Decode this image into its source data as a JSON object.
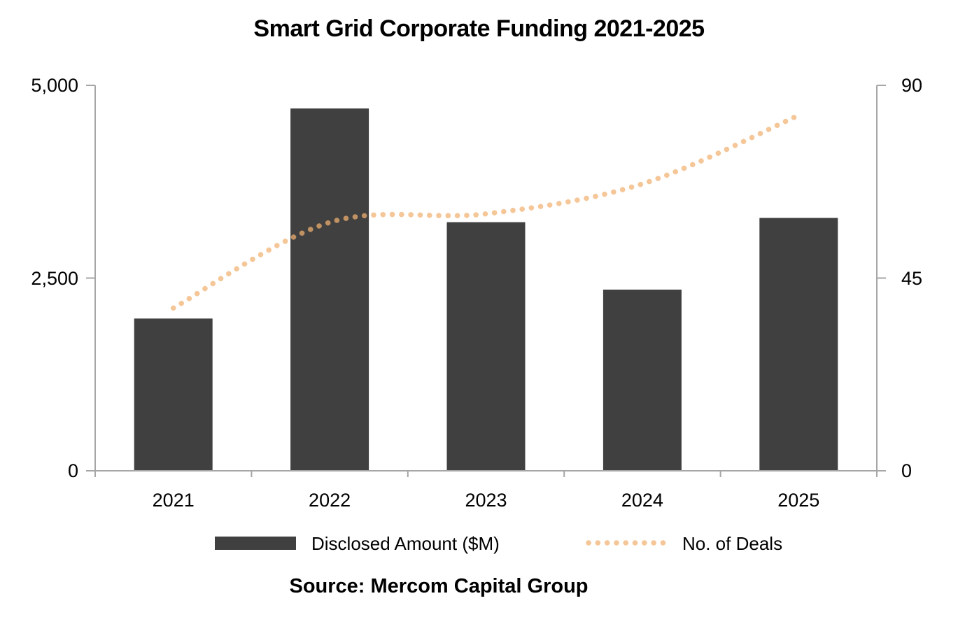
{
  "title": "Smart Grid Corporate Funding 2021-2025",
  "source": "Source: Mercom Capital Group",
  "legend": {
    "items": [
      {
        "label": "Disclosed Amount ($M)",
        "swatch": "bar"
      },
      {
        "label": "No. of Deals",
        "swatch": "dotted-line"
      }
    ]
  },
  "colors": {
    "bar": "#404040",
    "line": "#F1B06F",
    "line_opacity": 0.72,
    "axis": "#A6A6A6",
    "text": "#000000",
    "background": "#FFFFFF"
  },
  "chart_data": {
    "type": "bar",
    "combo": "bar+line",
    "title": "Smart Grid Corporate Funding 2021-2025",
    "categories": [
      "2021",
      "2022",
      "2023",
      "2024",
      "2025"
    ],
    "series": [
      {
        "name": "Disclosed Amount ($M)",
        "type": "bar",
        "axis": "left",
        "values": [
          1975,
          4700,
          3225,
          2350,
          3280
        ]
      },
      {
        "name": "No. of Deals",
        "type": "line",
        "line_style": "dotted",
        "smooth": true,
        "axis": "right",
        "values": [
          38,
          58,
          60,
          67,
          83
        ]
      }
    ],
    "left_axis": {
      "min": 0,
      "max": 5000,
      "ticks": [
        {
          "value": 5000,
          "label": "5,000"
        },
        {
          "value": 2500,
          "label": "2,500"
        },
        {
          "value": 0,
          "label": "0"
        }
      ]
    },
    "right_axis": {
      "min": 0,
      "max": 90,
      "ticks": [
        {
          "value": 90,
          "label": "90"
        },
        {
          "value": 45,
          "label": "45"
        },
        {
          "value": 0,
          "label": "0"
        }
      ]
    },
    "grid": false,
    "legend_position": "bottom",
    "source_note": "Source: Mercom Capital Group"
  }
}
